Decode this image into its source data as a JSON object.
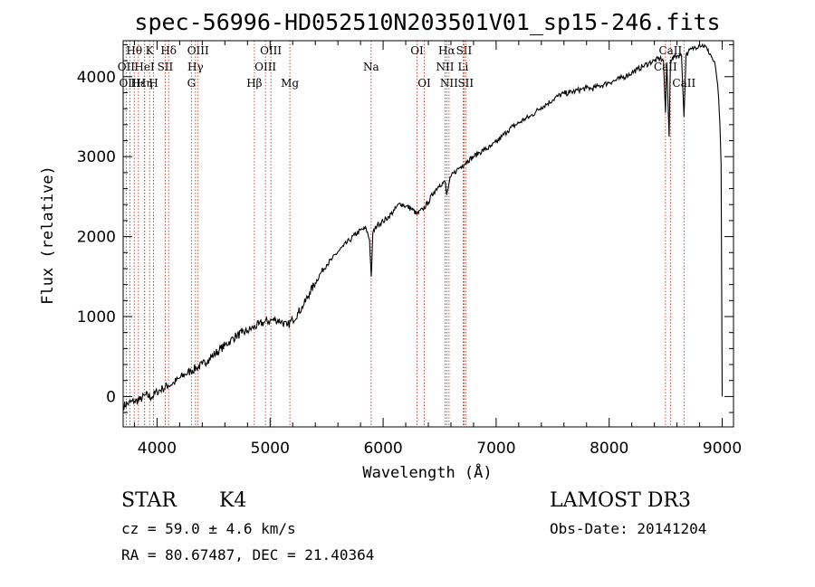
{
  "chart_data": {
    "type": "line",
    "title": "spec-56996-HD052510N203501V01_sp15-246.fits",
    "xlabel": "Wavelength (Å)",
    "ylabel": "Flux (relative)",
    "xlim": [
      3700,
      9100
    ],
    "ylim": [
      -380,
      4450
    ],
    "x_ticks": [
      4000,
      5000,
      6000,
      7000,
      8000,
      9000
    ],
    "y_ticks": [
      0,
      1000,
      2000,
      3000,
      4000
    ],
    "x_tick_labels": [
      "4000",
      "5000",
      "6000",
      "7000",
      "8000",
      "9000"
    ],
    "y_tick_labels": [
      "0",
      "1000",
      "2000",
      "3000",
      "4000"
    ],
    "series": [
      {
        "name": "flux",
        "x": [
          3700,
          3750,
          3800,
          3850,
          3900,
          3950,
          4000,
          4050,
          4100,
          4150,
          4200,
          4250,
          4300,
          4350,
          4400,
          4450,
          4500,
          4550,
          4600,
          4650,
          4700,
          4750,
          4800,
          4850,
          4900,
          4950,
          5000,
          5050,
          5100,
          5150,
          5200,
          5250,
          5300,
          5350,
          5400,
          5450,
          5500,
          5550,
          5600,
          5650,
          5700,
          5750,
          5800,
          5850,
          5880,
          5895,
          5910,
          5950,
          6000,
          6050,
          6100,
          6150,
          6200,
          6250,
          6300,
          6350,
          6400,
          6450,
          6500,
          6550,
          6563,
          6580,
          6600,
          6650,
          6700,
          6750,
          6800,
          6850,
          6900,
          6950,
          7000,
          7050,
          7100,
          7150,
          7200,
          7250,
          7300,
          7350,
          7400,
          7450,
          7500,
          7550,
          7600,
          7650,
          7700,
          7750,
          7800,
          7850,
          7900,
          7950,
          8000,
          8050,
          8100,
          8150,
          8200,
          8250,
          8300,
          8350,
          8400,
          8450,
          8480,
          8498,
          8510,
          8530,
          8542,
          8560,
          8600,
          8640,
          8662,
          8680,
          8700,
          8750,
          8800,
          8850,
          8870,
          8900,
          8940,
          8960,
          8980,
          8990,
          9000
        ],
        "y": [
          -120,
          -80,
          -60,
          -40,
          20,
          -10,
          60,
          100,
          140,
          170,
          230,
          280,
          320,
          360,
          400,
          460,
          520,
          580,
          640,
          700,
          760,
          790,
          820,
          860,
          900,
          930,
          950,
          960,
          940,
          880,
          960,
          1050,
          1150,
          1300,
          1420,
          1550,
          1650,
          1720,
          1810,
          1880,
          1950,
          2020,
          2080,
          2100,
          1960,
          1500,
          2050,
          2150,
          2190,
          2250,
          2330,
          2420,
          2380,
          2350,
          2280,
          2340,
          2430,
          2560,
          2650,
          2680,
          2520,
          2650,
          2750,
          2830,
          2890,
          2950,
          3000,
          3050,
          3090,
          3120,
          3180,
          3250,
          3320,
          3380,
          3420,
          3470,
          3500,
          3560,
          3620,
          3660,
          3710,
          3760,
          3790,
          3800,
          3820,
          3840,
          3860,
          3850,
          3880,
          3900,
          3930,
          3950,
          3980,
          4010,
          4050,
          4090,
          4130,
          4170,
          4200,
          4230,
          4200,
          3550,
          4180,
          3250,
          4210,
          4240,
          4260,
          4270,
          3500,
          4270,
          4310,
          4360,
          4400,
          4380,
          4330,
          4270,
          4130,
          3900,
          3400,
          2900,
          0
        ]
      }
    ],
    "lines": [
      {
        "label": "Hθ",
        "x": 3798,
        "row": 1
      },
      {
        "label": "OII",
        "x": 3727,
        "row": 2
      },
      {
        "label": "OIII",
        "x": 3760,
        "row": 3
      },
      {
        "label": "Hε",
        "x": 3835,
        "row": 3
      },
      {
        "label": "HeI",
        "x": 3889,
        "row": 2
      },
      {
        "label": "K",
        "x": 3934,
        "row": 1
      },
      {
        "label": "Hη",
        "x": 3890,
        "row": 3
      },
      {
        "label": "H",
        "x": 3969,
        "row": 3
      },
      {
        "label": "SII",
        "x": 4072,
        "row": 2
      },
      {
        "label": "Hδ",
        "x": 4102,
        "row": 1
      },
      {
        "label": "OIII",
        "x": 4363,
        "row": 1
      },
      {
        "label": "Hγ",
        "x": 4340,
        "row": 2
      },
      {
        "label": "G",
        "x": 4304,
        "row": 3
      },
      {
        "label": "Hβ",
        "x": 4861,
        "row": 3
      },
      {
        "label": "OIII",
        "x": 5007,
        "row": 1
      },
      {
        "label": "OIII",
        "x": 4959,
        "row": 2
      },
      {
        "label": "Mg",
        "x": 5175,
        "row": 3
      },
      {
        "label": "Na",
        "x": 5894,
        "row": 2
      },
      {
        "label": "OI",
        "x": 6300,
        "row": 1
      },
      {
        "label": "OI",
        "x": 6364,
        "row": 3
      },
      {
        "label": "Hα",
        "x": 6563,
        "row": 1
      },
      {
        "label": "NII",
        "x": 6548,
        "row": 2
      },
      {
        "label": "NII",
        "x": 6583,
        "row": 3
      },
      {
        "label": "SII",
        "x": 6716,
        "row": 1
      },
      {
        "label": "Li",
        "x": 6708,
        "row": 2
      },
      {
        "label": "SII",
        "x": 6731,
        "row": 3
      },
      {
        "label": "CaII",
        "x": 8542,
        "row": 1
      },
      {
        "label": "CaII",
        "x": 8498,
        "row": 2
      },
      {
        "label": "CaII",
        "x": 8662,
        "row": 3
      }
    ]
  },
  "info": {
    "class_text": "STAR",
    "subclass_text": "K4",
    "survey": "LAMOST DR3",
    "cz": "cz = 59.0 ± 4.6 km/s",
    "obs_date": "Obs-Date: 20141204",
    "coords": "RA =  80.67487, DEC =  21.40364"
  },
  "colors": {
    "line_marker": "#c43a2c",
    "spectrum": "#000000"
  }
}
